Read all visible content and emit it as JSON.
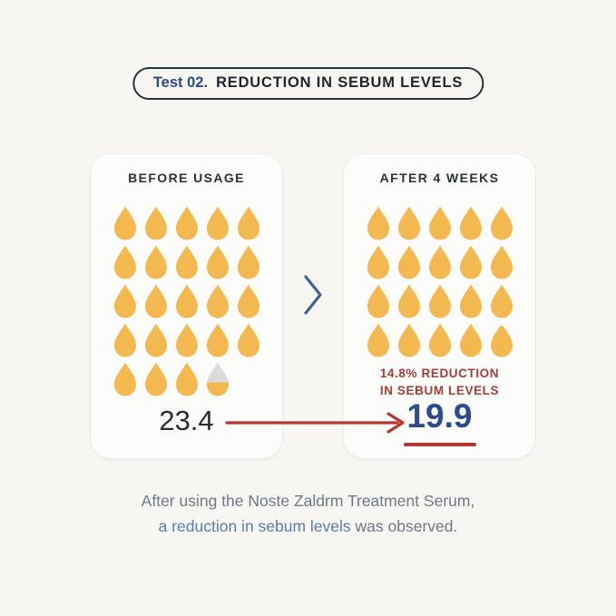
{
  "header": {
    "badge_prefix": "Test 02.",
    "badge_title": "REDUCTION IN SEBUM LEVELS"
  },
  "colors": {
    "drop_full": "#F3B950",
    "drop_empty": "#DBDBDB",
    "arrow_red": "#B4382F",
    "callout_red": "#A33E3A",
    "value_navy": "#2E4B90",
    "chevron_blue": "#41618F",
    "page_bg": "#F7F6F3"
  },
  "cards": [
    {
      "title": "BEFORE USAGE",
      "value": "23.4",
      "drops": [
        1,
        1,
        1,
        1,
        1,
        1,
        1,
        1,
        1,
        1,
        1,
        1,
        1,
        1,
        1,
        1,
        1,
        1,
        1,
        1,
        1,
        1,
        1,
        0.4
      ]
    },
    {
      "title": "AFTER 4 WEEKS",
      "value": "19.9",
      "callout_line1": "14.8% REDUCTION",
      "callout_line2": "IN SEBUM LEVELS",
      "drops": [
        1,
        1,
        1,
        1,
        1,
        1,
        1,
        1,
        1,
        1,
        1,
        1,
        1,
        1,
        1,
        1,
        1,
        1,
        1,
        0.9
      ]
    }
  ],
  "caption": {
    "line1": "After using the Noste Zaldrm Treatment Serum,",
    "line2_highlight": "a reduction in sebum levels",
    "line2_rest": " was observed."
  },
  "chart_data": {
    "type": "bar",
    "categories": [
      "BEFORE USAGE",
      "AFTER 4 WEEKS"
    ],
    "values": [
      23.4,
      19.9
    ],
    "title": "Test 02. REDUCTION IN SEBUM LEVELS",
    "xlabel": "",
    "ylabel": "",
    "annotations": [
      "14.8% REDUCTION IN SEBUM LEVELS"
    ],
    "unit_icon": "droplet",
    "units_per_icon": 1,
    "legend_position": "none",
    "grid": false
  }
}
